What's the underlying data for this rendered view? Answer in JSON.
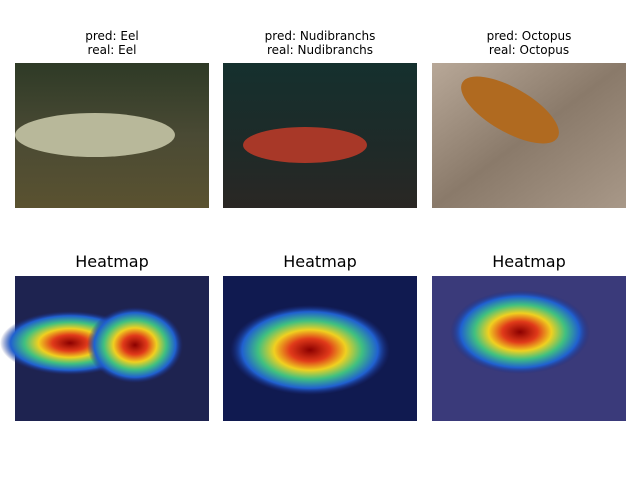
{
  "panels": [
    {
      "pred": "pred: Eel",
      "real": "real: Eel",
      "heatmap_title": "Heatmap"
    },
    {
      "pred": "pred: Nudibranchs",
      "real": "real: Nudibranchs",
      "heatmap_title": "Heatmap"
    },
    {
      "pred": "pred: Octopus",
      "real": "real: Octopus",
      "heatmap_title": "Heatmap"
    }
  ]
}
